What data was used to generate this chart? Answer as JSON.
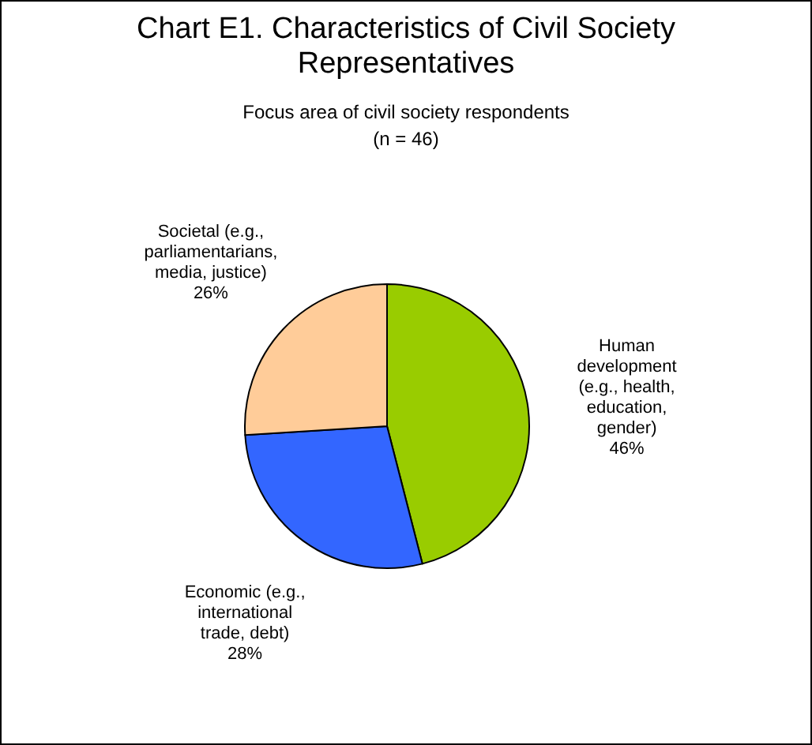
{
  "chart_data": {
    "type": "pie",
    "title": "Chart E1. Characteristics of Civil Society Representatives",
    "subtitle": "Focus area of civil society respondents (n = 46)",
    "categories": [
      "Human development (e.g., health, education, gender)",
      "Economic (e.g., international trade, debt)",
      "Societal (e.g., parliamentarians, media, justice)"
    ],
    "values": [
      46,
      28,
      26
    ],
    "colors": [
      "#99cc00",
      "#3366ff",
      "#ffcc99"
    ],
    "value_labels": [
      "46%",
      "28%",
      "26%"
    ]
  }
}
